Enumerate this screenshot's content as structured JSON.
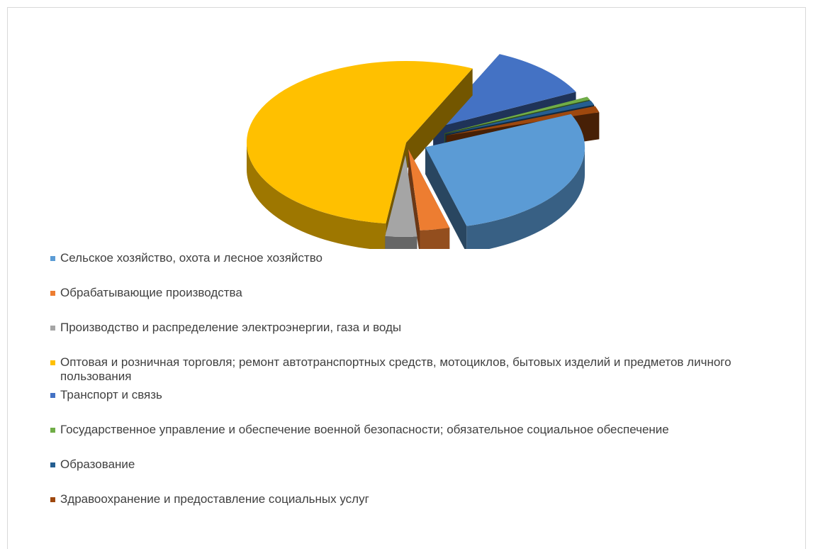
{
  "chart_data": {
    "type": "pie",
    "title": "",
    "style": "3D exploded pie",
    "legend_position": "bottom",
    "series": [
      {
        "name": "Сельское хозяйство, охота и лесное хозяйство",
        "value": 27.5,
        "color": "#5B9BD5"
      },
      {
        "name": "Обрабатывающие производства",
        "value": 3.0,
        "color": "#ED7D31"
      },
      {
        "name": "Производство и распределение электроэнергии, газа и воды",
        "value": 3.2,
        "color": "#A5A5A5"
      },
      {
        "name": "Оптовая и розничная торговля; ремонт автотранспортных средств, мотоциклов, бытовых изделий и предметов личного пользования",
        "value": 54.8,
        "color": "#FFC000"
      },
      {
        "name": "Транспорт и связь",
        "value": 10.8,
        "color": "#4472C4"
      },
      {
        "name": "Государственное управление и обеспечение военной безопасности; обязательное социальное обеспечение",
        "value": 0.0,
        "color": "#70AD47"
      },
      {
        "name": "Образование",
        "value": 0.2,
        "color": "#255E91"
      },
      {
        "name": "Здравоохранение и предоставление социальных услуг",
        "value": 0.5,
        "color": "#9E480E"
      }
    ]
  }
}
